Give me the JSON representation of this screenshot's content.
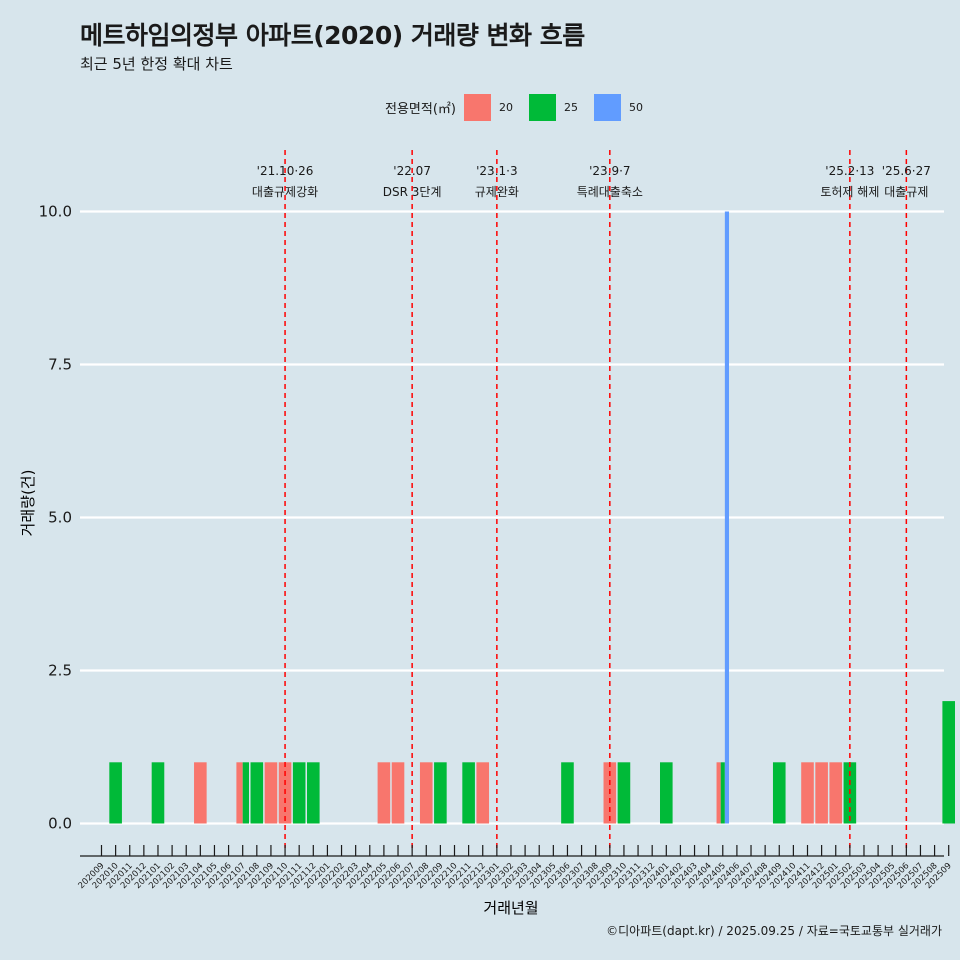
{
  "header": {
    "title": "메트하임의정부 아파트(2020) 거래량 변화 흐름",
    "subtitle": "최근 5년 한정 확대 차트"
  },
  "legend": {
    "title": "전용면적(㎡)",
    "items": [
      {
        "label": "20",
        "color": "#f8766d"
      },
      {
        "label": "25",
        "color": "#00ba38"
      },
      {
        "label": "50",
        "color": "#619cff"
      }
    ]
  },
  "caption": "©디아파트(dapt.kr) / 2025.09.25 / 자료=국토교통부 실거래가",
  "chart_data": {
    "type": "bar",
    "title": "메트하임의정부 아파트(2020) 거래량 변화 흐름",
    "xlabel": "거래년월",
    "ylabel": "거래량(건)",
    "ylim": [
      -0.45,
      10.9
    ],
    "yticks": [
      "0.0",
      "2.5",
      "5.0",
      "7.5",
      "10.0"
    ],
    "ytick_values": [
      0,
      2.5,
      5,
      7.5,
      10
    ],
    "categories": [
      "202009",
      "202010",
      "202011",
      "202012",
      "202101",
      "202102",
      "202103",
      "202104",
      "202105",
      "202106",
      "202107",
      "202108",
      "202109",
      "202110",
      "202111",
      "202112",
      "202201",
      "202202",
      "202203",
      "202204",
      "202205",
      "202206",
      "202207",
      "202208",
      "202209",
      "202210",
      "202211",
      "202212",
      "202301",
      "202302",
      "202303",
      "202304",
      "202305",
      "202306",
      "202307",
      "202308",
      "202309",
      "202310",
      "202311",
      "202312",
      "202401",
      "202402",
      "202403",
      "202404",
      "202405",
      "202406",
      "202407",
      "202408",
      "202409",
      "202410",
      "202411",
      "202412",
      "202501",
      "202502",
      "202503",
      "202504",
      "202505",
      "202506",
      "202507",
      "202508",
      "202509"
    ],
    "bars": [
      {
        "month": "202010",
        "size": "25",
        "value": 1,
        "offset": 0,
        "width": 1
      },
      {
        "month": "202101",
        "size": "25",
        "value": 1,
        "offset": 0,
        "width": 1
      },
      {
        "month": "202104",
        "size": "20",
        "value": 1,
        "offset": 0,
        "width": 1
      },
      {
        "month": "202107",
        "size": "20",
        "value": 1,
        "offset": -0.25,
        "width": 0.5
      },
      {
        "month": "202107",
        "size": "25",
        "value": 1,
        "offset": 0.25,
        "width": 0.5
      },
      {
        "month": "202108",
        "size": "25",
        "value": 1,
        "offset": 0,
        "width": 1
      },
      {
        "month": "202109",
        "size": "20",
        "value": 1,
        "offset": 0,
        "width": 1
      },
      {
        "month": "202110",
        "size": "20",
        "value": 1,
        "offset": 0,
        "width": 1
      },
      {
        "month": "202111",
        "size": "25",
        "value": 1,
        "offset": 0,
        "width": 1
      },
      {
        "month": "202112",
        "size": "25",
        "value": 1,
        "offset": 0,
        "width": 1
      },
      {
        "month": "202205",
        "size": "20",
        "value": 1,
        "offset": 0,
        "width": 1
      },
      {
        "month": "202206",
        "size": "20",
        "value": 1,
        "offset": 0,
        "width": 1
      },
      {
        "month": "202208",
        "size": "20",
        "value": 1,
        "offset": 0,
        "width": 1
      },
      {
        "month": "202209",
        "size": "25",
        "value": 1,
        "offset": 0,
        "width": 1
      },
      {
        "month": "202211",
        "size": "25",
        "value": 1,
        "offset": 0,
        "width": 1
      },
      {
        "month": "202212",
        "size": "20",
        "value": 1,
        "offset": 0,
        "width": 1
      },
      {
        "month": "202306",
        "size": "25",
        "value": 1,
        "offset": 0,
        "width": 1
      },
      {
        "month": "202309",
        "size": "20",
        "value": 1,
        "offset": 0,
        "width": 1
      },
      {
        "month": "202310",
        "size": "25",
        "value": 1,
        "offset": 0,
        "width": 1
      },
      {
        "month": "202401",
        "size": "25",
        "value": 1,
        "offset": 0,
        "width": 1
      },
      {
        "month": "202405",
        "size": "20",
        "value": 1,
        "offset": -0.33,
        "width": 0.33
      },
      {
        "month": "202405",
        "size": "25",
        "value": 1,
        "offset": 0,
        "width": 0.33
      },
      {
        "month": "202405",
        "size": "50",
        "value": 10,
        "offset": 0.33,
        "width": 0.33
      },
      {
        "month": "202409",
        "size": "25",
        "value": 1,
        "offset": 0,
        "width": 1
      },
      {
        "month": "202411",
        "size": "20",
        "value": 1,
        "offset": 0,
        "width": 1
      },
      {
        "month": "202412",
        "size": "20",
        "value": 1,
        "offset": 0,
        "width": 1
      },
      {
        "month": "202501",
        "size": "20",
        "value": 1,
        "offset": 0,
        "width": 1
      },
      {
        "month": "202502",
        "size": "25",
        "value": 1,
        "offset": 0,
        "width": 1
      },
      {
        "month": "202509",
        "size": "25",
        "value": 2,
        "offset": 0,
        "width": 1
      }
    ],
    "annotations": [
      {
        "at": 13.0,
        "line1": "'21.10·26",
        "line2": "대출규제강화",
        "dx": 0
      },
      {
        "at": 22.0,
        "line1": "'22.07",
        "line2": "DSR 3단계",
        "dx": 0
      },
      {
        "at": 28.0,
        "line1": "'23.1·3",
        "line2": "규제완화",
        "dx": 0
      },
      {
        "at": 36.0,
        "line1": "'23.9·7",
        "line2": "특례대출축소",
        "dx": 0
      },
      {
        "at": 53.0,
        "line1": "'25.2·13",
        "line2": "토허제 해제",
        "dx": 0
      },
      {
        "at": 57.0,
        "line1": "'25.6·27",
        "line2": "대출규제",
        "dx": 0
      }
    ]
  }
}
